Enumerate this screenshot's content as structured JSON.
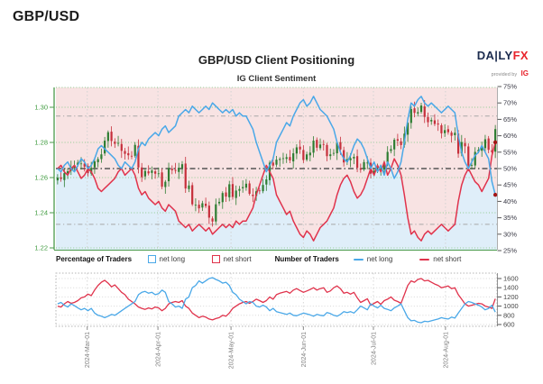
{
  "header": {
    "symbol": "GBP/USD"
  },
  "chart": {
    "title": "GBP/USD Client Positioning",
    "subtitle": "IG Client Sentiment"
  },
  "logo": {
    "daily": "DA|LY",
    "fx": "FX",
    "provided": "provided by",
    "ig": "IG"
  },
  "legend": {
    "percentage_label": "Percentage of Traders",
    "number_label": "Number of Traders",
    "net_long": "net long",
    "net_short": "net short"
  },
  "colors": {
    "net_long_blue": "#4aa8e8",
    "net_short_red": "#e0334c",
    "candle_up": "#2e7d32",
    "candle_down": "#c62f3b",
    "fill_short_pink": "#f8e3e3",
    "fill_long_blue": "#dfeef9",
    "axis_green": "#3f9b3f",
    "grid_green": "#8fcb8f",
    "marker_dark_red": "#a31515",
    "logo_navy": "#1c2c4f",
    "logo_red": "#e8242c"
  },
  "axes": {
    "price_ticks": [
      "1.30",
      "1.28",
      "1.26",
      "1.24",
      "1.22"
    ],
    "pct_ticks": [
      "75%",
      "70%",
      "65%",
      "60%",
      "55%",
      "50%",
      "45%",
      "40%",
      "35%",
      "30%",
      "25%"
    ],
    "count_ticks": [
      "1600",
      "1400",
      "1200",
      "1000",
      "800",
      "600"
    ],
    "date_ticks": [
      "2024-Mar-01",
      "2024-Apr-01",
      "2024-May-01",
      "2024-Jun-01",
      "2024-Jul-01",
      "2024-Aug-01"
    ]
  },
  "chart_data": {
    "type": "mixed",
    "title": "GBP/USD Client Positioning",
    "subtitle": "IG Client Sentiment",
    "interval": "daily",
    "date_range": [
      "2024-Feb-16",
      "2024-Aug-16"
    ],
    "x_ticks": [
      {
        "label": "2024-Mar-01",
        "index": 8.8
      },
      {
        "label": "2024-Apr-01",
        "index": 29.8
      },
      {
        "label": "2024-May-01",
        "index": 51.5
      },
      {
        "label": "2024-Jun-01",
        "index": 73
      },
      {
        "label": "2024-Jul-01",
        "index": 93.8
      },
      {
        "label": "2024-Aug-01",
        "index": 115.2
      }
    ],
    "price_panel": {
      "left_axis": {
        "label_ticks": [
          1.3,
          1.28,
          1.26,
          1.24,
          1.22
        ],
        "range": [
          1.219,
          1.3113
        ]
      },
      "right_axis": {
        "label_ticks": [
          75,
          70,
          65,
          60,
          55,
          50,
          45,
          40,
          35,
          30,
          25
        ],
        "unit": "%",
        "range": [
          25,
          75
        ]
      },
      "reference_lines_pct": [
        66,
        50,
        33
      ],
      "candle_closes": [
        1.26,
        1.2592,
        1.2625,
        1.2636,
        1.2658,
        1.267,
        1.2685,
        1.268,
        1.2662,
        1.2625,
        1.2655,
        1.2692,
        1.2705,
        1.2732,
        1.281,
        1.2858,
        1.2808,
        1.2792,
        1.2797,
        1.2752,
        1.2735,
        1.2727,
        1.2722,
        1.2786,
        1.2658,
        1.2602,
        1.2638,
        1.2624,
        1.264,
        1.2622,
        1.2624,
        1.2548,
        1.2576,
        1.2654,
        1.2642,
        1.2638,
        1.2655,
        1.2676,
        1.2538,
        1.2555,
        1.2448,
        1.2446,
        1.2425,
        1.2454,
        1.2438,
        1.2372,
        1.235,
        1.2448,
        1.2462,
        1.2512,
        1.2492,
        1.2562,
        1.249,
        1.2526,
        1.2535,
        1.2546,
        1.2565,
        1.2508,
        1.2495,
        1.2522,
        1.2525,
        1.2558,
        1.259,
        1.2685,
        1.2668,
        1.2702,
        1.2706,
        1.271,
        1.2716,
        1.2698,
        1.2738,
        1.2772,
        1.276,
        1.27,
        1.2732,
        1.2742,
        1.281,
        1.277,
        1.2788,
        1.279,
        1.2722,
        1.2732,
        1.274,
        1.2798,
        1.276,
        1.2686,
        1.2705,
        1.271,
        1.2718,
        1.2656,
        1.2645,
        1.2688,
        1.2685,
        1.2622,
        1.264,
        1.2645,
        1.265,
        1.2685,
        1.2746,
        1.2762,
        1.2815,
        1.281,
        1.2785,
        1.285,
        1.2912,
        1.299,
        1.2968,
        1.2972,
        1.301,
        1.2945,
        1.2915,
        1.2928,
        1.2905,
        1.2902,
        1.2852,
        1.287,
        1.2858,
        1.2838,
        1.2855,
        1.2736,
        1.2802,
        1.2778,
        1.2668,
        1.2672,
        1.2746,
        1.2758,
        1.2768,
        1.2818,
        1.2758,
        1.2745,
        1.2876
      ],
      "candle_note": "open/high/low estimated from closes; values read off chart",
      "percent_net_long": [
        50,
        49,
        51,
        52,
        50,
        49,
        51,
        53,
        52,
        50,
        51,
        53,
        56,
        57,
        56,
        55,
        54,
        53,
        51,
        50,
        52,
        51,
        50,
        52,
        56,
        58,
        57,
        59,
        60,
        61,
        60,
        62,
        63,
        61,
        62,
        63,
        66,
        67,
        68,
        67,
        69,
        68,
        67,
        68,
        69,
        68,
        70,
        69,
        68,
        67,
        68,
        67,
        68,
        66,
        67,
        66,
        66,
        64,
        62,
        58,
        55,
        52,
        49,
        51,
        53,
        58,
        60,
        62,
        64,
        63,
        66,
        68,
        70,
        71,
        69,
        70,
        72,
        70,
        68,
        67,
        66,
        64,
        62,
        58,
        55,
        53,
        52,
        54,
        57,
        59,
        58,
        56,
        53,
        50,
        52,
        49,
        51,
        48,
        52,
        50,
        47,
        49,
        52,
        58,
        65,
        70,
        69,
        71,
        72,
        70,
        69,
        70,
        69,
        68,
        67,
        68,
        69,
        68,
        67,
        60,
        55,
        52,
        50,
        52,
        54,
        55,
        57,
        55,
        53,
        46,
        42
      ],
      "percent_net_short_note": "net short % = 100 - net long %"
    },
    "traders_panel": {
      "right_axis": {
        "label_ticks": [
          1600,
          1400,
          1200,
          1000,
          800,
          600
        ],
        "range": [
          580,
          1720
        ]
      },
      "net_long_count": [
        1050,
        1080,
        1020,
        980,
        1050,
        1010,
        960,
        920,
        950,
        900,
        950,
        850,
        800,
        780,
        750,
        780,
        820,
        800,
        850,
        900,
        950,
        1000,
        1050,
        1100,
        1250,
        1300,
        1320,
        1280,
        1300,
        1250,
        1270,
        1350,
        1300,
        1100,
        1050,
        980,
        1000,
        950,
        1150,
        1200,
        1400,
        1450,
        1550,
        1500,
        1550,
        1600,
        1620,
        1580,
        1550,
        1500,
        1520,
        1450,
        1300,
        1250,
        1150,
        1100,
        1050,
        1100,
        1080,
        1000,
        980,
        1020,
        980,
        900,
        950,
        880,
        860,
        840,
        820,
        850,
        800,
        790,
        820,
        850,
        830,
        810,
        780,
        820,
        800,
        790,
        860,
        840,
        800,
        780,
        820,
        880,
        860,
        880,
        850,
        920,
        1000,
        960,
        920,
        1050,
        1000,
        960,
        1020,
        950,
        930,
        900,
        960,
        1000,
        1050,
        900,
        750,
        680,
        690,
        650,
        640,
        670,
        660,
        680,
        700,
        720,
        750,
        730,
        720,
        760,
        740,
        850,
        950,
        1050,
        1100,
        1080,
        1050,
        1020,
        980,
        920,
        950,
        1020,
        870
      ],
      "net_short_count": [
        1000,
        980,
        1050,
        1100,
        1060,
        1080,
        1120,
        1180,
        1200,
        1260,
        1230,
        1350,
        1450,
        1520,
        1560,
        1500,
        1420,
        1460,
        1380,
        1300,
        1250,
        1150,
        1100,
        1050,
        980,
        950,
        930,
        960,
        940,
        980,
        960,
        900,
        950,
        1050,
        1080,
        1100,
        1080,
        1120,
        1000,
        950,
        850,
        800,
        750,
        780,
        760,
        720,
        700,
        730,
        750,
        800,
        780,
        850,
        950,
        1000,
        1050,
        1080,
        1100,
        1060,
        1100,
        1150,
        1120,
        1080,
        1120,
        1200,
        1150,
        1250,
        1280,
        1300,
        1320,
        1280,
        1350,
        1380,
        1340,
        1300,
        1330,
        1360,
        1400,
        1350,
        1380,
        1400,
        1300,
        1330,
        1400,
        1440,
        1380,
        1280,
        1300,
        1260,
        1300,
        1180,
        1080,
        1120,
        1160,
        1020,
        1060,
        1100,
        1040,
        1120,
        1150,
        1200,
        1130,
        1100,
        1060,
        1250,
        1450,
        1550,
        1520,
        1580,
        1600,
        1550,
        1560,
        1520,
        1480,
        1450,
        1400,
        1420,
        1440,
        1380,
        1400,
        1250,
        1150,
        1050,
        1000,
        1020,
        1040,
        1060,
        1050,
        1000,
        980,
        950,
        1160
      ]
    }
  }
}
